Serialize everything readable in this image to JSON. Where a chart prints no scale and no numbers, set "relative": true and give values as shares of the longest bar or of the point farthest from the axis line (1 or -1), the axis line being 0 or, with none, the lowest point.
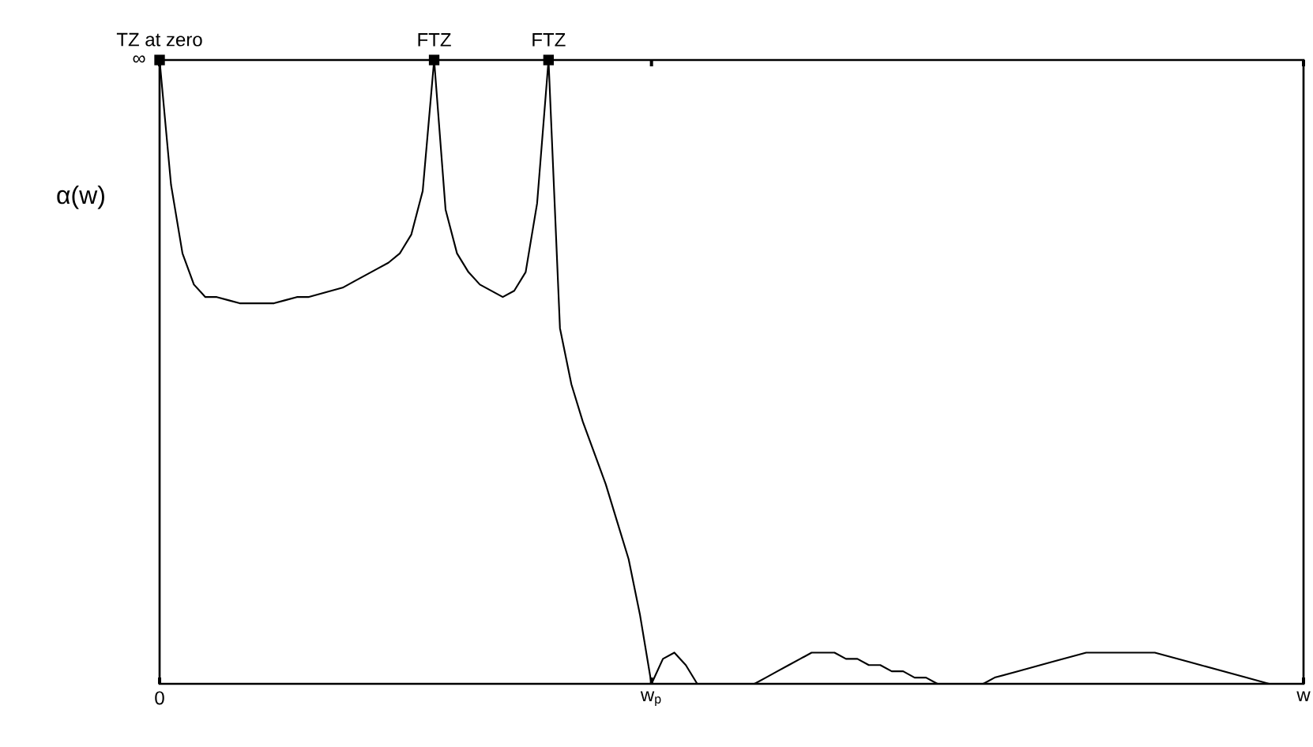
{
  "chart_data": {
    "type": "line",
    "relative": true,
    "ylabel": "α(w)",
    "color": "#000000",
    "categories": [
      "0",
      null,
      null,
      null,
      null,
      null,
      null,
      null,
      null,
      null,
      null,
      null,
      null,
      null,
      null,
      null,
      null,
      null,
      null,
      null,
      null,
      null,
      null,
      null,
      null,
      null,
      null,
      null,
      null,
      null,
      null,
      null,
      null,
      null,
      null,
      null,
      null,
      null,
      null,
      null,
      null,
      null,
      null,
      "w$_{p}$",
      null,
      null,
      null,
      null,
      null,
      null,
      null,
      null,
      null,
      null,
      null,
      null,
      null,
      null,
      null,
      null,
      null,
      null,
      null,
      null,
      null,
      null,
      null,
      null,
      null,
      null,
      null,
      null,
      null,
      null,
      null,
      null,
      null,
      null,
      null,
      null,
      null,
      null,
      null,
      null,
      null,
      null,
      null,
      null,
      null,
      null,
      null,
      null,
      null,
      null,
      null,
      null,
      null,
      null,
      null,
      null,
      "w"
    ],
    "values": [
      1,
      0.8,
      0.69,
      0.64,
      0.62,
      0.62,
      0.615,
      0.61,
      0.61,
      0.61,
      0.61,
      0.615,
      0.62,
      0.62,
      0.625,
      0.63,
      0.635,
      0.645,
      0.655,
      0.665,
      0.675,
      0.69,
      0.72,
      0.79,
      1,
      0.76,
      0.69,
      0.66,
      0.64,
      0.63,
      0.62,
      0.63,
      0.66,
      0.77,
      1,
      0.57,
      0.48,
      0.42,
      0.37,
      0.32,
      0.26,
      0.2,
      0.11,
      0,
      0.04,
      0.05,
      0.03,
      0,
      0,
      0,
      0,
      0,
      0,
      0.01,
      0.02,
      0.03,
      0.04,
      0.05,
      0.05,
      0.05,
      0.04,
      0.04,
      0.03,
      0.03,
      0.02,
      0.02,
      0.01,
      0.01,
      0,
      0,
      0,
      0,
      0,
      0.01,
      0.015,
      0.02,
      0.025,
      0.03,
      0.035,
      0.04,
      0.045,
      0.05,
      0.05,
      0.05,
      0.05,
      0.05,
      0.05,
      0.05,
      0.045,
      0.04,
      0.035,
      0.03,
      0.025,
      0.02,
      0.015,
      0.01,
      0.005,
      0,
      0,
      0,
      0
    ],
    "annotations": [
      "∞",
      {
        "text": "TZ at zero",
        "y": 1
      },
      {
        "text": "FTZ",
        "y": 1
      },
      {
        "text": "FTZ",
        "y": 1
      }
    ]
  }
}
